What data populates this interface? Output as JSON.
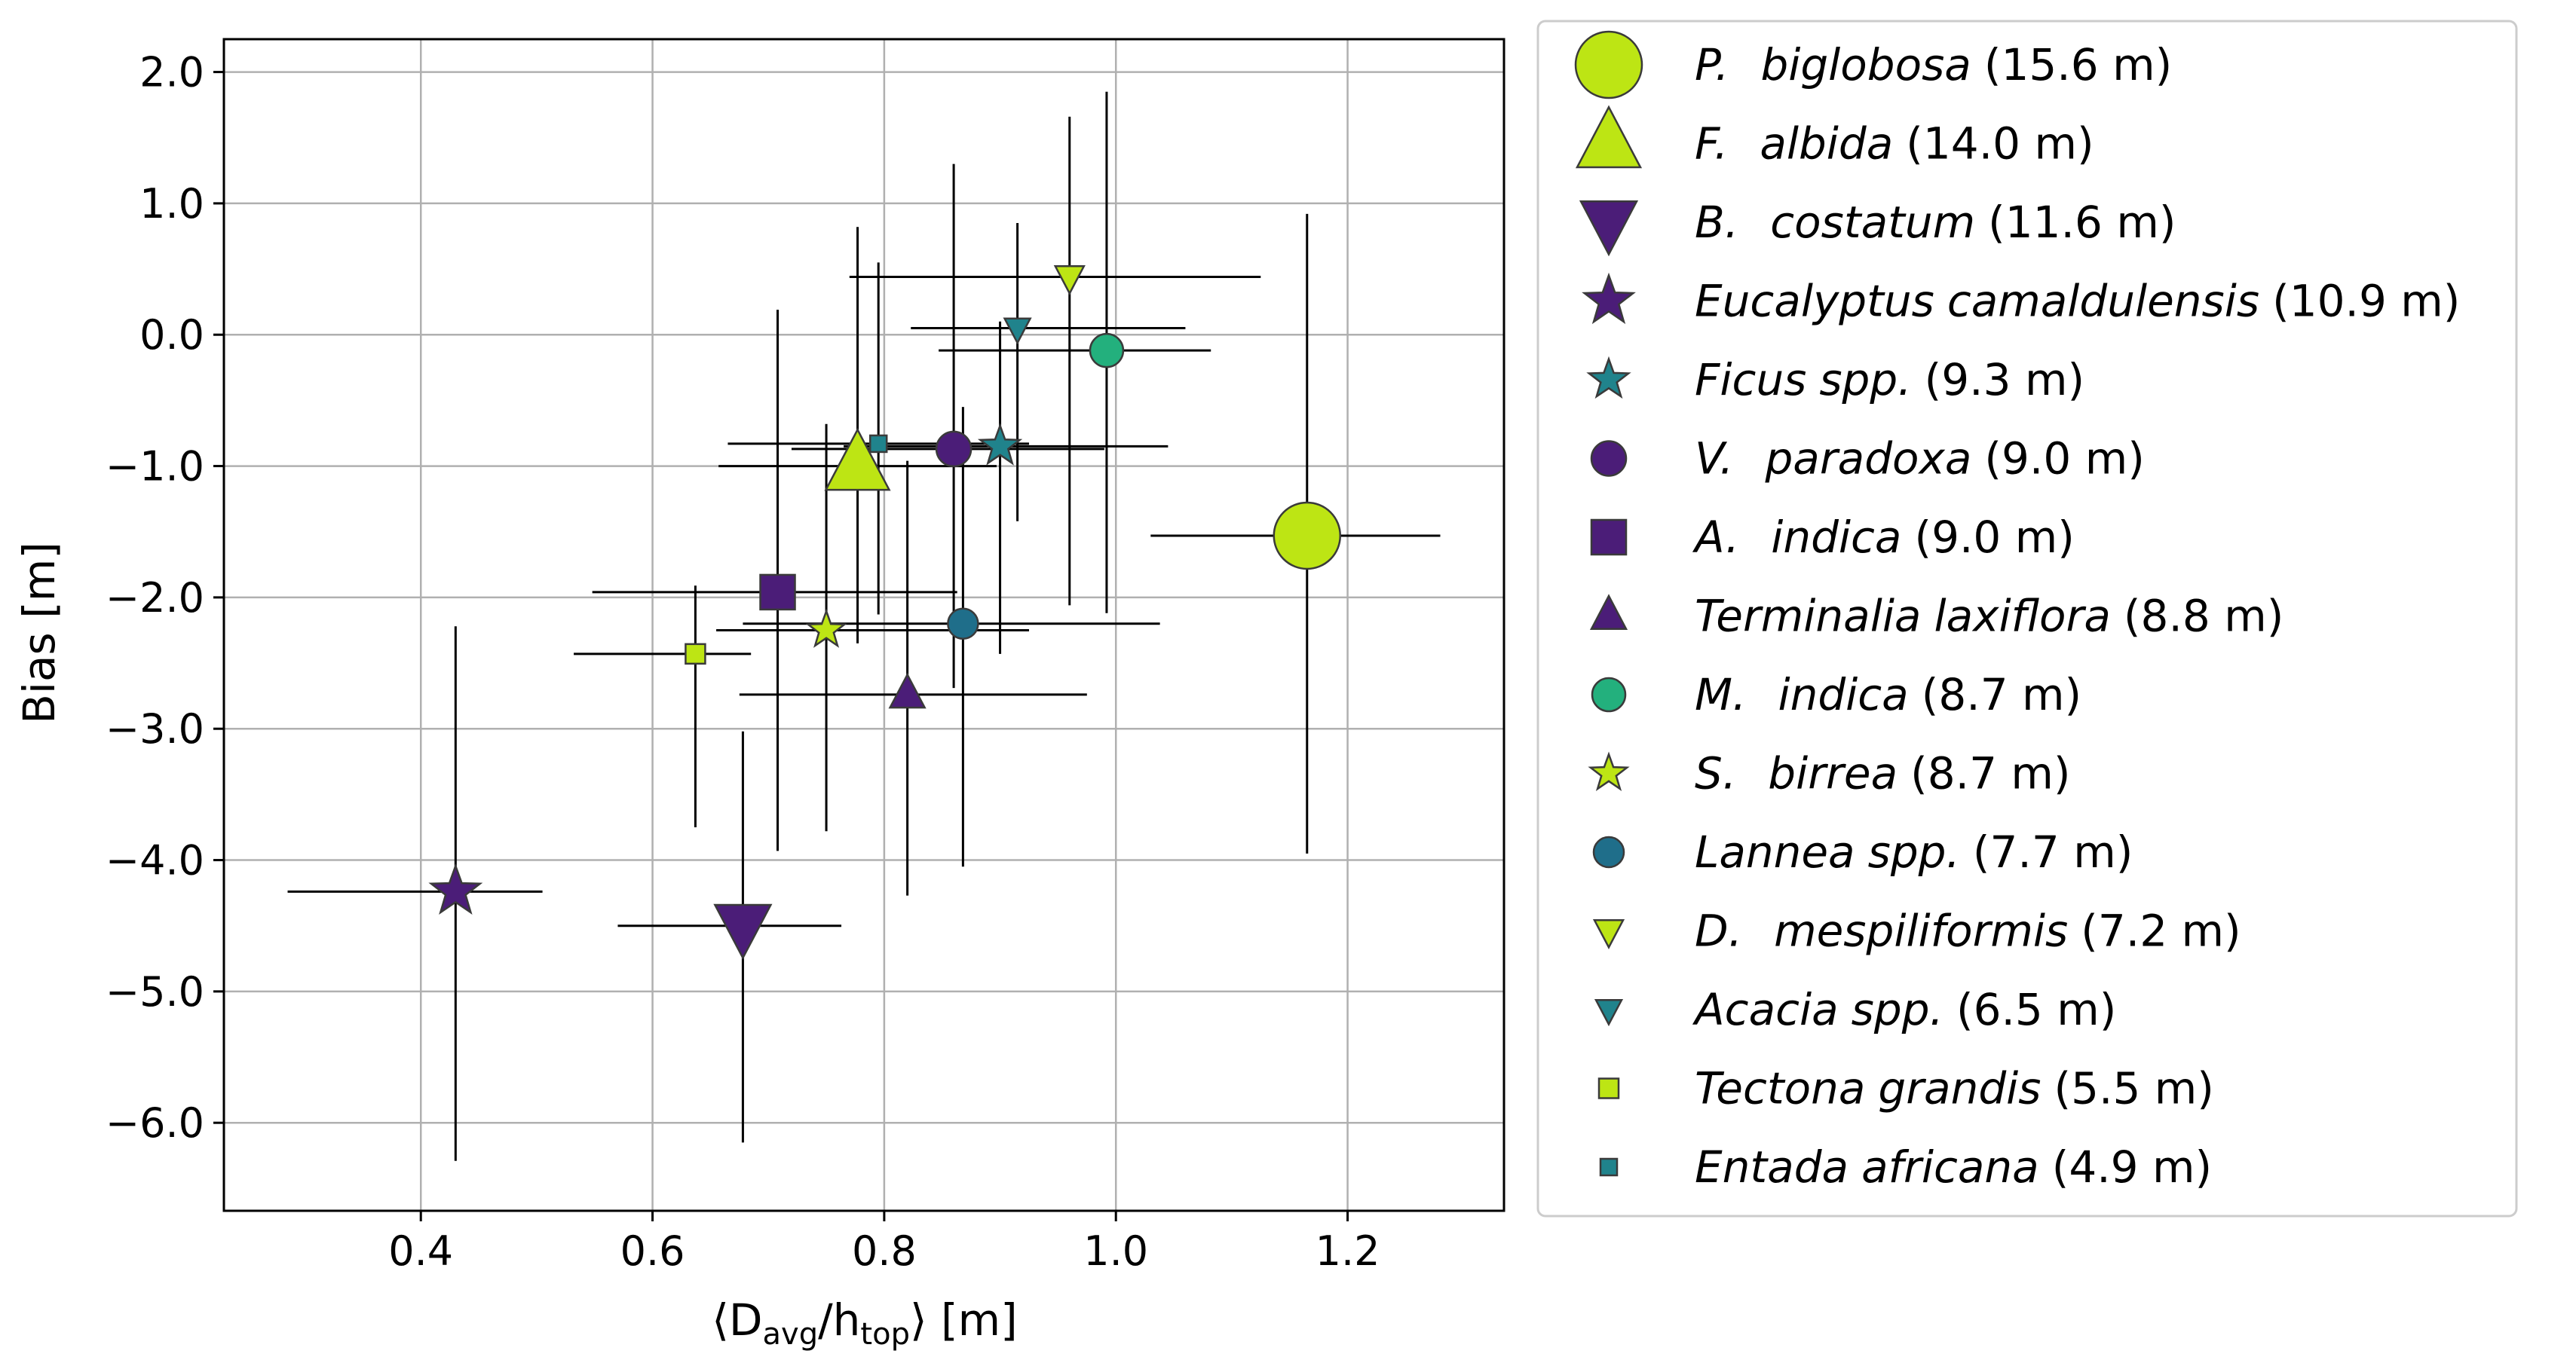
{
  "chart_data": {
    "type": "scatter",
    "title": "",
    "xlabel": {
      "pre": "⟨D",
      "sub1": "avg",
      "mid": "/h",
      "sub2": "top",
      "post": "⟩ [m]"
    },
    "ylabel": "Bias [m]",
    "xlim": [
      0.23,
      1.335
    ],
    "ylim": [
      -6.67,
      2.25
    ],
    "xticks": [
      0.4,
      0.6,
      0.8,
      1.0,
      1.2
    ],
    "xtick_labels": [
      "0.4",
      "0.6",
      "0.8",
      "1.0",
      "1.2"
    ],
    "yticks": [
      2.0,
      1.0,
      0.0,
      -1.0,
      -2.0,
      -3.0,
      -4.0,
      -5.0,
      -6.0
    ],
    "ytick_labels": [
      "2.0",
      "1.0",
      "0.0",
      "−1.0",
      "−2.0",
      "−3.0",
      "−4.0",
      "−5.0",
      "−6.0"
    ],
    "grid": true,
    "legend_position": "outside-right",
    "series": [
      {
        "name": "P. biglobosa",
        "genus": "P.",
        "epithet": "biglobosa",
        "height": "(15.6 m)",
        "italic_pair": true,
        "marker": "circle",
        "size": 44,
        "color": "#bde514",
        "x": 1.165,
        "y": -1.53,
        "xerr": [
          0.135,
          0.115
        ],
        "yerr": [
          2.42,
          2.45
        ]
      },
      {
        "name": "F. albida",
        "genus": "F.",
        "epithet": "albida",
        "height": "(14.0 m)",
        "italic_pair": true,
        "marker": "triangle-up",
        "size": 42,
        "color": "#bde514",
        "x": 0.777,
        "y": -1.0,
        "xerr": [
          0.12,
          0.12
        ],
        "yerr": [
          1.35,
          1.82
        ]
      },
      {
        "name": "B. costatum",
        "genus": "B.",
        "epithet": "costatum",
        "height": "(11.6 m)",
        "italic_pair": true,
        "marker": "triangle-down",
        "size": 37,
        "color": "#4b1d78",
        "x": 0.678,
        "y": -4.5,
        "xerr": [
          0.108,
          0.085
        ],
        "yerr": [
          1.65,
          1.48
        ]
      },
      {
        "name": "Eucalyptus camaldulensis",
        "genus": "Eucalyptus",
        "epithet": "camaldulensis",
        "height": "(10.9 m)",
        "italic_pair": false,
        "marker": "star",
        "size": 31,
        "color": "#4b1d78",
        "x": 0.43,
        "y": -4.24,
        "xerr": [
          0.145,
          0.075
        ],
        "yerr": [
          2.05,
          2.02
        ]
      },
      {
        "name": "Ficus spp.",
        "genus": "Ficus",
        "epithet": "spp.",
        "height": "(9.3 m)",
        "italic_pair": false,
        "marker": "star",
        "size": 25,
        "color": "#20838c",
        "x": 0.9,
        "y": -0.85,
        "xerr": [
          0.135,
          0.145
        ],
        "yerr": [
          1.58,
          0.95
        ]
      },
      {
        "name": "V. paradoxa",
        "genus": "V.",
        "epithet": "paradoxa",
        "height": "(9.0 m)",
        "italic_pair": true,
        "marker": "circle",
        "size": 23,
        "color": "#4b1d78",
        "x": 0.86,
        "y": -0.87,
        "xerr": [
          0.14,
          0.13
        ],
        "yerr": [
          1.82,
          2.17
        ]
      },
      {
        "name": "A. indica",
        "genus": "A.",
        "epithet": "indica",
        "height": "(9.0 m)",
        "italic_pair": true,
        "marker": "square",
        "size": 23,
        "color": "#4b1d78",
        "x": 0.708,
        "y": -1.96,
        "xerr": [
          0.16,
          0.155
        ],
        "yerr": [
          1.97,
          2.15
        ]
      },
      {
        "name": "Terminalia laxiflora",
        "genus": "Terminalia",
        "epithet": "laxiflora",
        "height": "(8.8 m)",
        "italic_pair": false,
        "marker": "triangle-up",
        "size": 23,
        "color": "#4b1d78",
        "x": 0.82,
        "y": -2.74,
        "xerr": [
          0.145,
          0.155
        ],
        "yerr": [
          1.53,
          1.78
        ]
      },
      {
        "name": "M. indica",
        "genus": "M.",
        "epithet": "indica",
        "height": "(8.7 m)",
        "italic_pair": true,
        "marker": "circle",
        "size": 22,
        "color": "#23b07d",
        "x": 0.992,
        "y": -0.12,
        "xerr": [
          0.145,
          0.09
        ],
        "yerr": [
          2.0,
          1.97
        ]
      },
      {
        "name": "S. birrea",
        "genus": "S.",
        "epithet": "birrea",
        "height": "(8.7 m)",
        "italic_pair": true,
        "marker": "star",
        "size": 23,
        "color": "#bde514",
        "x": 0.75,
        "y": -2.25,
        "xerr": [
          0.095,
          0.175
        ],
        "yerr": [
          1.53,
          1.57
        ]
      },
      {
        "name": "Lannea spp.",
        "genus": "Lannea",
        "epithet": "spp.",
        "height": "(7.7 m)",
        "italic_pair": false,
        "marker": "circle",
        "size": 20,
        "color": "#1f6e8a",
        "x": 0.868,
        "y": -2.2,
        "xerr": [
          0.19,
          0.17
        ],
        "yerr": [
          1.85,
          1.65
        ]
      },
      {
        "name": "D. mespiliformis",
        "genus": "D.",
        "epithet": "mespiliformis",
        "height": "(7.2 m)",
        "italic_pair": true,
        "marker": "triangle-down",
        "size": 19,
        "color": "#bde514",
        "x": 0.96,
        "y": 0.44,
        "xerr": [
          0.19,
          0.165
        ],
        "yerr": [
          2.5,
          1.22
        ]
      },
      {
        "name": "Acacia spp.",
        "genus": "Acacia",
        "epithet": "spp.",
        "height": "(6.5 m)",
        "italic_pair": false,
        "marker": "triangle-down",
        "size": 17,
        "color": "#20838c",
        "x": 0.915,
        "y": 0.05,
        "xerr": [
          0.092,
          0.145
        ],
        "yerr": [
          1.47,
          0.8
        ]
      },
      {
        "name": "Tectona grandis",
        "genus": "Tectona",
        "epithet": "grandis",
        "height": "(5.5 m)",
        "italic_pair": false,
        "marker": "square",
        "size": 13,
        "color": "#bde514",
        "x": 0.637,
        "y": -2.43,
        "xerr": [
          0.105,
          0.048
        ],
        "yerr": [
          1.32,
          0.52
        ]
      },
      {
        "name": "Entada africana",
        "genus": "Entada",
        "epithet": "africana",
        "height": "(4.9 m)",
        "italic_pair": false,
        "marker": "square",
        "size": 11,
        "color": "#20838c",
        "x": 0.795,
        "y": -0.83,
        "xerr": [
          0.13,
          0.13
        ],
        "yerr": [
          1.3,
          1.38
        ]
      }
    ]
  }
}
